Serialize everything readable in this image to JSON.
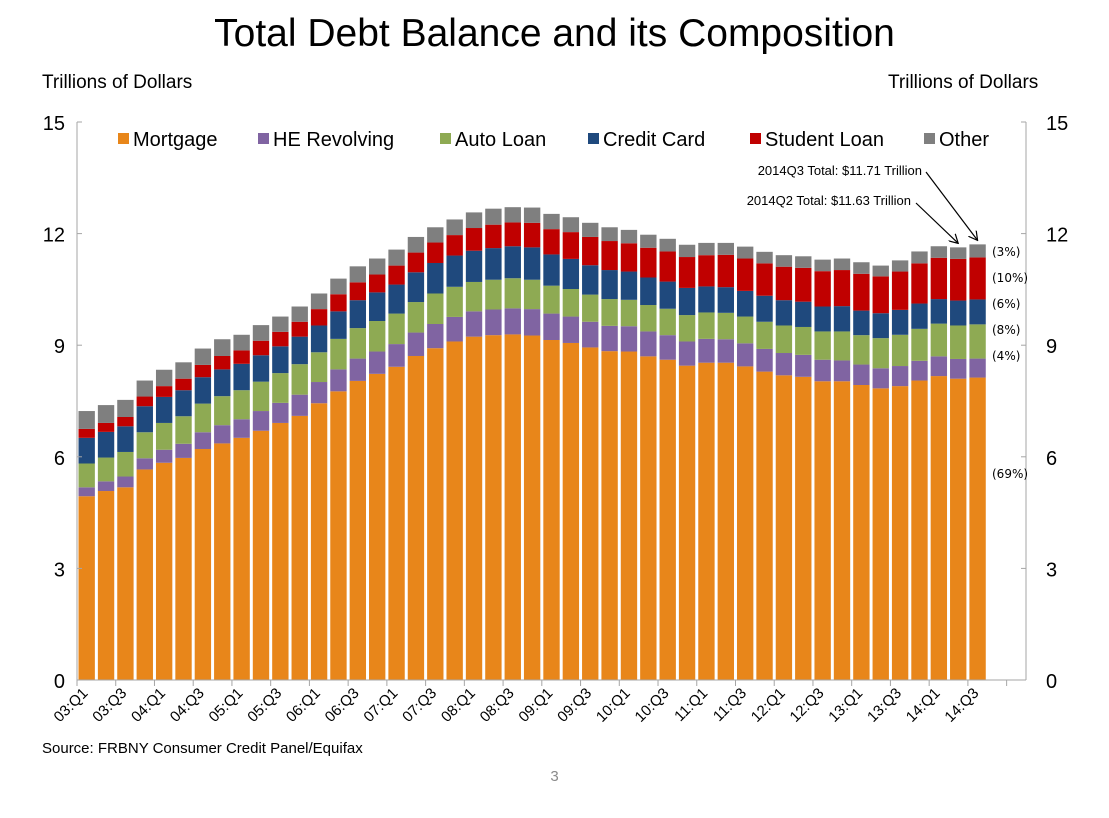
{
  "page": {
    "title": "Total Debt Balance and its Composition",
    "y_unit_left": "Trillions of Dollars",
    "y_unit_right": "Trillions of Dollars",
    "source": "Source: FRBNY Consumer Credit Panel/Equifax",
    "page_number": "3"
  },
  "chart_data": {
    "type": "bar",
    "stacked": true,
    "title": "Total Debt Balance and its Composition",
    "ylabel": "Trillions of Dollars",
    "ylabel_right": "Trillions of Dollars",
    "xlabel": "",
    "ylim": [
      0,
      15
    ],
    "yticks": [
      0,
      3,
      6,
      9,
      12,
      15
    ],
    "grid": false,
    "legend_position": "top",
    "categories": [
      "03:Q1",
      "03:Q2",
      "03:Q3",
      "03:Q4",
      "04:Q1",
      "04:Q2",
      "04:Q3",
      "04:Q4",
      "05:Q1",
      "05:Q2",
      "05:Q3",
      "05:Q4",
      "06:Q1",
      "06:Q2",
      "06:Q3",
      "06:Q4",
      "07:Q1",
      "07:Q2",
      "07:Q3",
      "07:Q4",
      "08:Q1",
      "08:Q2",
      "08:Q3",
      "08:Q4",
      "09:Q1",
      "09:Q2",
      "09:Q3",
      "09:Q4",
      "10:Q1",
      "10:Q2",
      "10:Q3",
      "10:Q4",
      "11:Q1",
      "11:Q2",
      "11:Q3",
      "11:Q4",
      "12:Q1",
      "12:Q2",
      "12:Q3",
      "12:Q4",
      "13:Q1",
      "13:Q2",
      "13:Q3",
      "13:Q4",
      "14:Q1",
      "14:Q2",
      "14:Q3"
    ],
    "tick_labels": [
      "03:Q1",
      "03:Q3",
      "04:Q1",
      "04:Q3",
      "05:Q1",
      "05:Q3",
      "06:Q1",
      "06:Q3",
      "07:Q1",
      "07:Q3",
      "08:Q1",
      "08:Q3",
      "09:Q1",
      "09:Q3",
      "10:Q1",
      "10:Q3",
      "11:Q1",
      "11:Q3",
      "12:Q1",
      "12:Q3",
      "13:Q1",
      "13:Q3",
      "14:Q1",
      "14:Q3"
    ],
    "series": [
      {
        "name": "Mortgage",
        "color": "#E8861A",
        "share_label": "(69%)",
        "values": [
          4.94,
          5.08,
          5.18,
          5.66,
          5.84,
          5.97,
          6.21,
          6.36,
          6.51,
          6.7,
          6.91,
          7.1,
          7.44,
          7.76,
          8.04,
          8.23,
          8.42,
          8.71,
          8.92,
          9.1,
          9.23,
          9.27,
          9.29,
          9.26,
          9.14,
          9.06,
          8.94,
          8.84,
          8.83,
          8.7,
          8.61,
          8.45,
          8.53,
          8.53,
          8.43,
          8.29,
          8.19,
          8.15,
          8.03,
          8.03,
          7.93,
          7.84,
          7.9,
          8.05,
          8.17,
          8.1,
          8.13
        ]
      },
      {
        "name": "HE Revolving",
        "color": "#8064A2",
        "share_label": "(4%)",
        "values": [
          0.24,
          0.26,
          0.29,
          0.3,
          0.35,
          0.38,
          0.45,
          0.49,
          0.5,
          0.53,
          0.54,
          0.57,
          0.57,
          0.59,
          0.6,
          0.6,
          0.61,
          0.63,
          0.65,
          0.66,
          0.68,
          0.69,
          0.7,
          0.71,
          0.71,
          0.71,
          0.69,
          0.68,
          0.68,
          0.67,
          0.66,
          0.65,
          0.64,
          0.63,
          0.62,
          0.61,
          0.6,
          0.59,
          0.58,
          0.56,
          0.55,
          0.54,
          0.54,
          0.53,
          0.53,
          0.53,
          0.51
        ]
      },
      {
        "name": "Auto Loan",
        "color": "#8EAA53",
        "share_label": "(8%)",
        "values": [
          0.64,
          0.64,
          0.66,
          0.7,
          0.72,
          0.74,
          0.77,
          0.78,
          0.78,
          0.79,
          0.8,
          0.82,
          0.8,
          0.82,
          0.82,
          0.82,
          0.82,
          0.82,
          0.82,
          0.81,
          0.79,
          0.8,
          0.81,
          0.79,
          0.75,
          0.74,
          0.73,
          0.72,
          0.71,
          0.71,
          0.71,
          0.71,
          0.71,
          0.71,
          0.72,
          0.73,
          0.74,
          0.75,
          0.76,
          0.78,
          0.79,
          0.81,
          0.84,
          0.86,
          0.88,
          0.9,
          0.92
        ]
      },
      {
        "name": "Credit Card",
        "color": "#1F497D",
        "share_label": "(6%)",
        "values": [
          0.69,
          0.69,
          0.69,
          0.7,
          0.7,
          0.7,
          0.71,
          0.72,
          0.71,
          0.71,
          0.72,
          0.74,
          0.72,
          0.74,
          0.75,
          0.77,
          0.78,
          0.8,
          0.82,
          0.84,
          0.84,
          0.85,
          0.86,
          0.87,
          0.84,
          0.81,
          0.79,
          0.78,
          0.76,
          0.74,
          0.73,
          0.73,
          0.7,
          0.69,
          0.69,
          0.7,
          0.68,
          0.68,
          0.67,
          0.68,
          0.66,
          0.67,
          0.67,
          0.68,
          0.66,
          0.67,
          0.67
        ]
      },
      {
        "name": "Student Loan",
        "color": "#C00000",
        "share_label": "(10%)",
        "values": [
          0.24,
          0.24,
          0.25,
          0.26,
          0.29,
          0.31,
          0.33,
          0.36,
          0.36,
          0.39,
          0.39,
          0.4,
          0.44,
          0.46,
          0.48,
          0.48,
          0.51,
          0.53,
          0.55,
          0.55,
          0.61,
          0.63,
          0.64,
          0.66,
          0.68,
          0.72,
          0.76,
          0.78,
          0.76,
          0.8,
          0.81,
          0.83,
          0.84,
          0.87,
          0.87,
          0.87,
          0.9,
          0.91,
          0.95,
          0.97,
          0.99,
          0.99,
          1.03,
          1.08,
          1.11,
          1.12,
          1.13
        ]
      },
      {
        "name": "Other",
        "color": "#7F7F7F",
        "share_label": "(3%)",
        "values": [
          0.48,
          0.48,
          0.46,
          0.43,
          0.44,
          0.44,
          0.44,
          0.45,
          0.42,
          0.42,
          0.41,
          0.41,
          0.42,
          0.42,
          0.43,
          0.43,
          0.43,
          0.42,
          0.41,
          0.42,
          0.42,
          0.43,
          0.41,
          0.41,
          0.41,
          0.4,
          0.38,
          0.37,
          0.36,
          0.35,
          0.34,
          0.33,
          0.33,
          0.32,
          0.32,
          0.31,
          0.31,
          0.31,
          0.31,
          0.31,
          0.31,
          0.29,
          0.3,
          0.32,
          0.31,
          0.31,
          0.35
        ]
      }
    ],
    "annotations": [
      {
        "text": "2014Q3 Total: $11.71 Trillion",
        "target": "14:Q3",
        "value": 11.71
      },
      {
        "text": "2014Q2 Total: $11.63 Trillion",
        "target": "14:Q2",
        "value": 11.63
      }
    ]
  }
}
